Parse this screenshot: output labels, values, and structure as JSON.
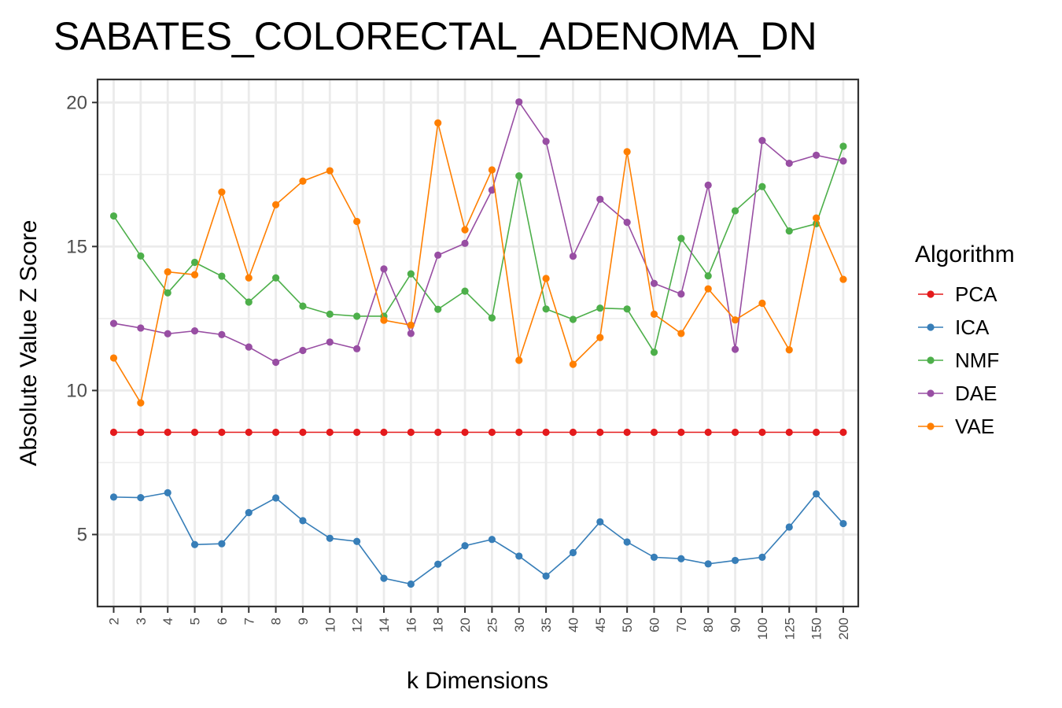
{
  "chart_data": {
    "type": "line",
    "title": "SABATES_COLORECTAL_ADENOMA_DN",
    "xlabel": "k Dimensions",
    "ylabel": "Absolute Value Z Score",
    "categories": [
      "2",
      "3",
      "4",
      "5",
      "6",
      "7",
      "8",
      "9",
      "10",
      "12",
      "14",
      "16",
      "18",
      "20",
      "25",
      "30",
      "35",
      "40",
      "45",
      "50",
      "60",
      "70",
      "80",
      "90",
      "100",
      "125",
      "150",
      "200"
    ],
    "ylim": [
      2.5,
      20.8
    ],
    "y_ticks": [
      "5",
      "10",
      "15",
      "20"
    ],
    "grid": true,
    "legend": {
      "title": "Algorithm",
      "position": "right"
    },
    "series": [
      {
        "name": "PCA",
        "color": "#e41a1c",
        "values": [
          8.55,
          8.55,
          8.55,
          8.55,
          8.55,
          8.55,
          8.55,
          8.55,
          8.55,
          8.55,
          8.55,
          8.55,
          8.55,
          8.55,
          8.55,
          8.55,
          8.55,
          8.55,
          8.55,
          8.55,
          8.55,
          8.55,
          8.55,
          8.55,
          8.55,
          8.55,
          8.55,
          8.55
        ]
      },
      {
        "name": "ICA",
        "color": "#377eb8",
        "values": [
          6.3,
          6.28,
          6.45,
          4.65,
          4.68,
          5.76,
          6.27,
          5.48,
          4.87,
          4.76,
          3.48,
          3.28,
          3.97,
          4.61,
          4.83,
          4.25,
          3.56,
          4.37,
          5.44,
          4.74,
          4.21,
          4.16,
          3.98,
          4.1,
          4.21,
          5.26,
          6.41,
          5.38
        ]
      },
      {
        "name": "NMF",
        "color": "#4daf4a",
        "values": [
          16.06,
          14.67,
          13.39,
          14.45,
          13.97,
          13.07,
          13.91,
          12.93,
          12.65,
          12.58,
          12.58,
          14.05,
          12.82,
          13.45,
          12.52,
          17.45,
          12.83,
          12.47,
          12.86,
          12.83,
          11.33,
          15.28,
          13.98,
          16.24,
          17.08,
          15.54,
          15.79,
          18.48
        ]
      },
      {
        "name": "DAE",
        "color": "#984ea3",
        "values": [
          12.33,
          12.17,
          11.97,
          12.07,
          11.94,
          11.51,
          10.98,
          11.39,
          11.68,
          11.45,
          14.22,
          11.98,
          14.7,
          15.11,
          16.96,
          20.02,
          18.65,
          14.66,
          16.64,
          15.84,
          13.72,
          13.35,
          17.13,
          11.43,
          18.68,
          17.89,
          18.17,
          17.97
        ]
      },
      {
        "name": "VAE",
        "color": "#ff7f00",
        "values": [
          11.13,
          9.57,
          14.12,
          14.02,
          16.89,
          13.91,
          16.45,
          17.27,
          17.63,
          15.87,
          12.44,
          12.27,
          19.29,
          15.58,
          17.66,
          11.05,
          13.89,
          10.91,
          11.84,
          18.29,
          12.65,
          11.98,
          13.53,
          12.45,
          13.03,
          11.41,
          15.99,
          13.86
        ]
      }
    ]
  }
}
